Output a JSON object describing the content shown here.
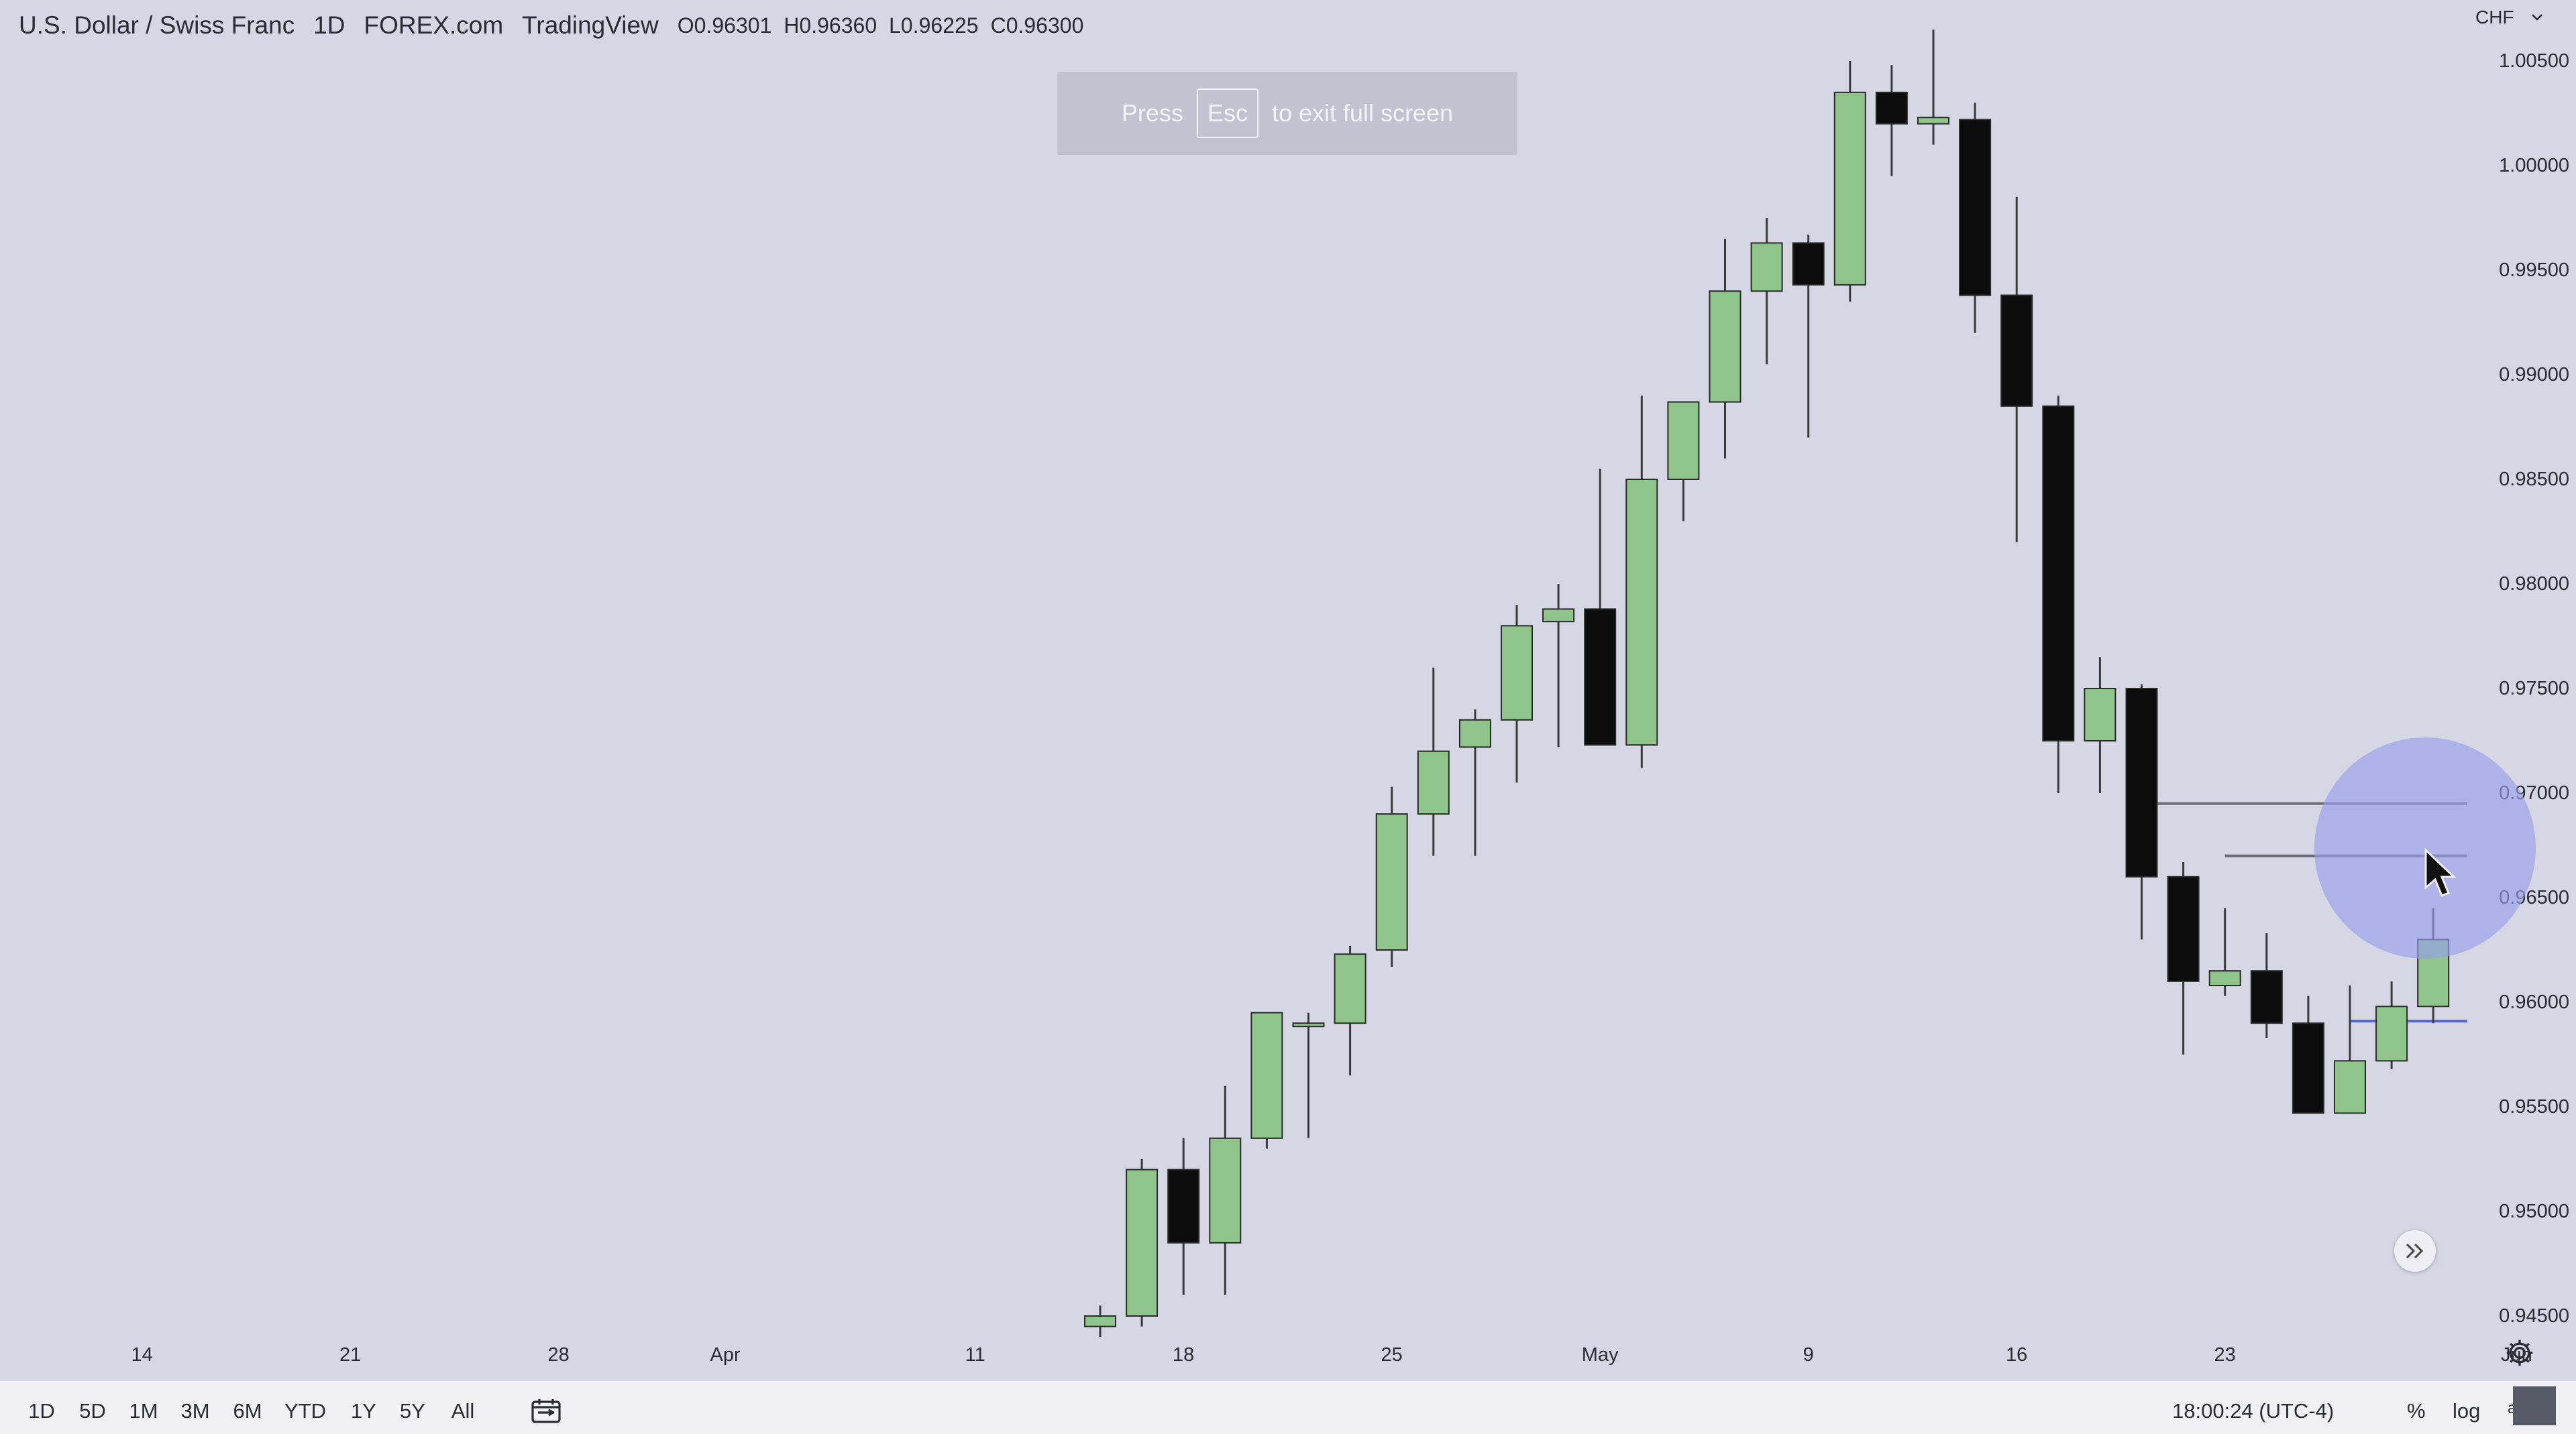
{
  "header": {
    "symbol": "U.S. Dollar / Swiss Franc",
    "interval": "1D",
    "exchange": "FOREX.com",
    "source": "TradingView",
    "open": "O0.96301",
    "high": "H0.96360",
    "low": "L0.96225",
    "close": "C0.96300"
  },
  "fullscreen_banner": {
    "press": "Press",
    "key": "Esc",
    "rest": "to exit full screen"
  },
  "price_scale": {
    "currency": "CHF",
    "dropdown_icon": "chevron-down-icon"
  },
  "colors": {
    "background": "#d6d6e4",
    "up_candle": "#8fc48a",
    "down_candle": "#0c0c0c",
    "wick": "#3a3a3a",
    "blue_line": "#5566cc"
  },
  "bottom_bar": {
    "ranges": [
      "1D",
      "5D",
      "1M",
      "3M",
      "6M",
      "YTD",
      "1Y",
      "5Y",
      "All"
    ],
    "clock": "18:00:24 (UTC-4)",
    "percent": "%",
    "log": "log",
    "auto": "auto"
  },
  "chart_data": {
    "type": "candlestick",
    "title": "",
    "xlabel": "",
    "ylabel": "",
    "ylim": [
      0.944,
      1.0075
    ],
    "y_ticks": [
      "1.00500",
      "1.00000",
      "0.99500",
      "0.99000",
      "0.98500",
      "0.98000",
      "0.97500",
      "0.97000",
      "0.96500",
      "0.96000",
      "0.95500",
      "0.95000",
      "0.94500"
    ],
    "x_ticks": [
      {
        "label": "14",
        "index": -23
      },
      {
        "label": "21",
        "index": -18
      },
      {
        "label": "28",
        "index": -13
      },
      {
        "label": "Apr",
        "index": -9
      },
      {
        "label": "11",
        "index": -3
      },
      {
        "label": "18",
        "index": 2
      },
      {
        "label": "25",
        "index": 7
      },
      {
        "label": "May",
        "index": 12
      },
      {
        "label": "9",
        "index": 17
      },
      {
        "label": "16",
        "index": 22
      },
      {
        "label": "23",
        "index": 27
      },
      {
        "label": "Jun",
        "index": 34
      }
    ],
    "candles": [
      {
        "o": 0.9445,
        "h": 0.9455,
        "l": 0.944,
        "c": 0.945
      },
      {
        "o": 0.945,
        "h": 0.9525,
        "l": 0.9445,
        "c": 0.952
      },
      {
        "o": 0.952,
        "h": 0.9535,
        "l": 0.946,
        "c": 0.9485
      },
      {
        "o": 0.9485,
        "h": 0.956,
        "l": 0.946,
        "c": 0.9535
      },
      {
        "o": 0.9535,
        "h": 0.9595,
        "l": 0.953,
        "c": 0.9595
      },
      {
        "o": 0.959,
        "h": 0.9595,
        "l": 0.9535,
        "c": 0.959
      },
      {
        "o": 0.959,
        "h": 0.9627,
        "l": 0.9565,
        "c": 0.9623
      },
      {
        "o": 0.9625,
        "h": 0.9703,
        "l": 0.9617,
        "c": 0.969
      },
      {
        "o": 0.969,
        "h": 0.976,
        "l": 0.967,
        "c": 0.972
      },
      {
        "o": 0.9722,
        "h": 0.974,
        "l": 0.967,
        "c": 0.9735
      },
      {
        "o": 0.9735,
        "h": 0.979,
        "l": 0.9705,
        "c": 0.978
      },
      {
        "o": 0.9782,
        "h": 0.98,
        "l": 0.9722,
        "c": 0.9788
      },
      {
        "o": 0.9788,
        "h": 0.9855,
        "l": 0.9723,
        "c": 0.9723
      },
      {
        "o": 0.9723,
        "h": 0.989,
        "l": 0.9712,
        "c": 0.985
      },
      {
        "o": 0.985,
        "h": 0.9885,
        "l": 0.983,
        "c": 0.9887
      },
      {
        "o": 0.9887,
        "h": 0.9965,
        "l": 0.986,
        "c": 0.994
      },
      {
        "o": 0.994,
        "h": 0.9975,
        "l": 0.9905,
        "c": 0.9963
      },
      {
        "o": 0.9963,
        "h": 0.9967,
        "l": 0.987,
        "c": 0.9943
      },
      {
        "o": 0.9943,
        "h": 1.005,
        "l": 0.9935,
        "c": 1.0035
      },
      {
        "o": 1.0035,
        "h": 1.0048,
        "l": 0.9995,
        "c": 1.002
      },
      {
        "o": 1.002,
        "h": 1.0065,
        "l": 1.001,
        "c": 1.0023
      },
      {
        "o": 1.0022,
        "h": 1.003,
        "l": 0.992,
        "c": 0.9938
      },
      {
        "o": 0.9938,
        "h": 0.9985,
        "l": 0.982,
        "c": 0.9885
      },
      {
        "o": 0.9885,
        "h": 0.989,
        "l": 0.97,
        "c": 0.9725
      },
      {
        "o": 0.9725,
        "h": 0.9765,
        "l": 0.97,
        "c": 0.975
      },
      {
        "o": 0.975,
        "h": 0.9752,
        "l": 0.963,
        "c": 0.966
      },
      {
        "o": 0.966,
        "h": 0.9667,
        "l": 0.9575,
        "c": 0.961
      },
      {
        "o": 0.9608,
        "h": 0.9645,
        "l": 0.9603,
        "c": 0.9615
      },
      {
        "o": 0.9615,
        "h": 0.9633,
        "l": 0.9583,
        "c": 0.959
      },
      {
        "o": 0.959,
        "h": 0.9603,
        "l": 0.9548,
        "c": 0.9547
      },
      {
        "o": 0.9547,
        "h": 0.9608,
        "l": 0.9548,
        "c": 0.9572
      },
      {
        "o": 0.9572,
        "h": 0.961,
        "l": 0.9568,
        "c": 0.9598
      },
      {
        "o": 0.9598,
        "h": 0.9645,
        "l": 0.959,
        "c": 0.963
      }
    ],
    "horizontal_lines": [
      {
        "price": 0.9695,
        "from_index": 25,
        "color": "#6d6d78"
      },
      {
        "price": 0.967,
        "from_index": 27,
        "color": "#6d6d78"
      },
      {
        "price": 0.9591,
        "from_index": 30,
        "color": "#5566cc"
      }
    ]
  }
}
